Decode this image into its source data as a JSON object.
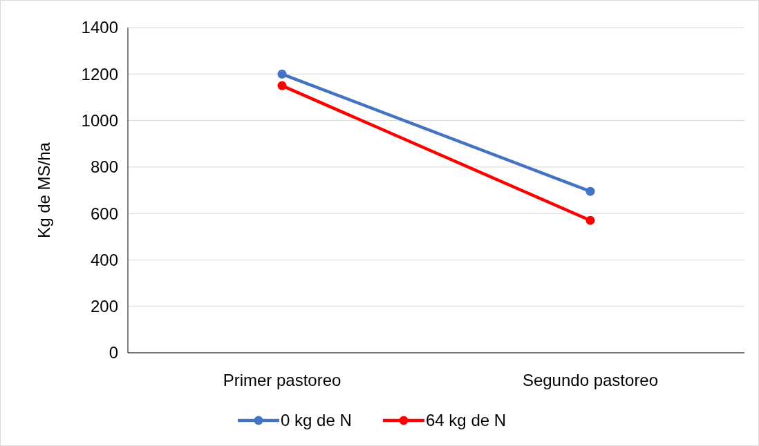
{
  "chart_data": {
    "type": "line",
    "ylabel": "Kg de MS/ha",
    "categories": [
      "Primer pastoreo",
      "Segundo pastoreo"
    ],
    "series": [
      {
        "name": "0 kg de N",
        "color": "#4472c4",
        "values": [
          1200,
          695
        ]
      },
      {
        "name": "64 kg de N",
        "color": "#ff0000",
        "values": [
          1150,
          570
        ]
      }
    ],
    "ylim": [
      0,
      1400
    ],
    "yticks": [
      0,
      200,
      400,
      600,
      800,
      1000,
      1200,
      1400
    ],
    "grid": "y",
    "legend": "bottom",
    "marker": "circle",
    "line_style": "solid"
  }
}
